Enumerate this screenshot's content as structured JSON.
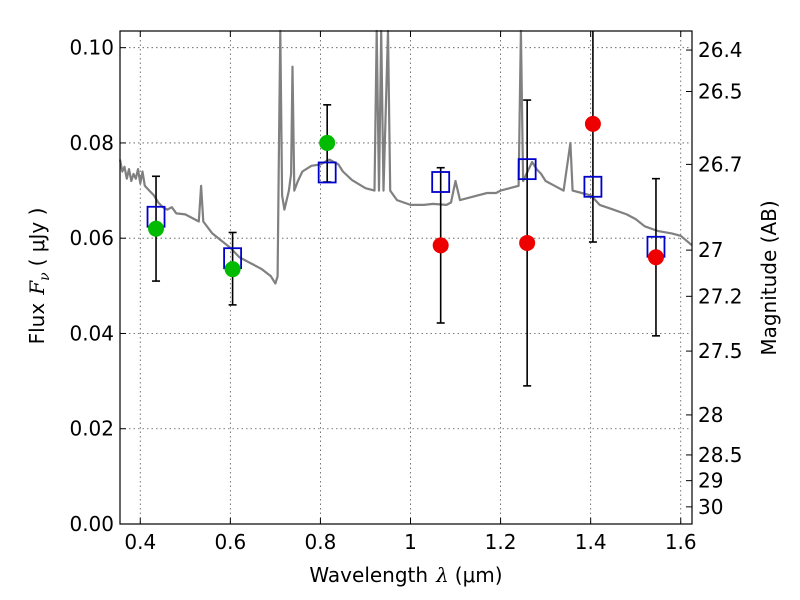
{
  "chart_data": {
    "type": "scatter",
    "xlabel_text": "Wavelength",
    "xlabel_symbol": "λ",
    "xlabel_unit": "(μm)",
    "ylabel_text": "Flux",
    "ylabel_symbol": "F",
    "ylabel_subscript": "ν",
    "ylabel_unit": "( μJy )",
    "y2label": "Magnitude (AB)",
    "xlim": [
      0.355,
      1.625
    ],
    "ylim": [
      0.0,
      0.1035
    ],
    "grid": true,
    "xticks": [
      0.4,
      0.6,
      0.8,
      1.0,
      1.2,
      1.4,
      1.6
    ],
    "xtick_labels": [
      "0.4",
      "0.6",
      "0.8",
      "1",
      "1.2",
      "1.4",
      "1.6"
    ],
    "yticks": [
      0.0,
      0.02,
      0.04,
      0.06,
      0.08,
      0.1
    ],
    "ytick_labels": [
      "0.00",
      "0.02",
      "0.04",
      "0.06",
      "0.08",
      "0.10"
    ],
    "y2ticks": [
      {
        "label": "26.4",
        "flux": 0.0995
      },
      {
        "label": "26.5",
        "flux": 0.0908
      },
      {
        "label": "26.7",
        "flux": 0.0755
      },
      {
        "label": "27",
        "flux": 0.0575
      },
      {
        "label": "27.2",
        "flux": 0.0478
      },
      {
        "label": "27.5",
        "flux": 0.0363
      },
      {
        "label": "28",
        "flux": 0.0229
      },
      {
        "label": "28.5",
        "flux": 0.0145
      },
      {
        "label": "29",
        "flux": 0.0091
      },
      {
        "label": "30",
        "flux": 0.0036
      }
    ],
    "colors": {
      "template": "#808080",
      "model_box": "#0000cc",
      "green_point": "#00bb00",
      "red_point": "#ee0000",
      "errorbar": "#000000",
      "grid": "#555555"
    },
    "template_spectrum": [
      [
        0.355,
        0.0765
      ],
      [
        0.36,
        0.074
      ],
      [
        0.365,
        0.075
      ],
      [
        0.37,
        0.0725
      ],
      [
        0.375,
        0.0745
      ],
      [
        0.38,
        0.072
      ],
      [
        0.385,
        0.0735
      ],
      [
        0.39,
        0.0725
      ],
      [
        0.395,
        0.0745
      ],
      [
        0.4,
        0.0715
      ],
      [
        0.405,
        0.074
      ],
      [
        0.41,
        0.071
      ],
      [
        0.42,
        0.07
      ],
      [
        0.43,
        0.069
      ],
      [
        0.44,
        0.0675
      ],
      [
        0.45,
        0.0665
      ],
      [
        0.46,
        0.066
      ],
      [
        0.47,
        0.0665
      ],
      [
        0.48,
        0.0652
      ],
      [
        0.5,
        0.065
      ],
      [
        0.52,
        0.064
      ],
      [
        0.53,
        0.0635
      ],
      [
        0.535,
        0.071
      ],
      [
        0.54,
        0.0635
      ],
      [
        0.56,
        0.061
      ],
      [
        0.58,
        0.0595
      ],
      [
        0.6,
        0.058
      ],
      [
        0.62,
        0.056
      ],
      [
        0.65,
        0.0545
      ],
      [
        0.67,
        0.0535
      ],
      [
        0.69,
        0.052
      ],
      [
        0.7,
        0.0505
      ],
      [
        0.705,
        0.052
      ],
      [
        0.708,
        0.08
      ],
      [
        0.711,
        0.1035
      ],
      [
        0.715,
        0.069
      ],
      [
        0.72,
        0.066
      ],
      [
        0.73,
        0.07
      ],
      [
        0.735,
        0.0735
      ],
      [
        0.738,
        0.096
      ],
      [
        0.742,
        0.07
      ],
      [
        0.75,
        0.072
      ],
      [
        0.76,
        0.074
      ],
      [
        0.78,
        0.0752
      ],
      [
        0.8,
        0.0755
      ],
      [
        0.82,
        0.0765
      ],
      [
        0.84,
        0.0755
      ],
      [
        0.85,
        0.074
      ],
      [
        0.87,
        0.0722
      ],
      [
        0.9,
        0.0705
      ],
      [
        0.92,
        0.07
      ],
      [
        0.925,
        0.1035
      ],
      [
        0.93,
        0.07
      ],
      [
        0.935,
        0.1035
      ],
      [
        0.94,
        0.07
      ],
      [
        0.95,
        0.1035
      ],
      [
        0.955,
        0.07
      ],
      [
        0.97,
        0.068
      ],
      [
        1.0,
        0.067
      ],
      [
        1.03,
        0.067
      ],
      [
        1.05,
        0.0672
      ],
      [
        1.08,
        0.067
      ],
      [
        1.09,
        0.0675
      ],
      [
        1.1,
        0.072
      ],
      [
        1.11,
        0.068
      ],
      [
        1.13,
        0.0685
      ],
      [
        1.15,
        0.069
      ],
      [
        1.17,
        0.0695
      ],
      [
        1.19,
        0.0695
      ],
      [
        1.2,
        0.07
      ],
      [
        1.22,
        0.0705
      ],
      [
        1.24,
        0.071
      ],
      [
        1.245,
        0.1035
      ],
      [
        1.25,
        0.072
      ],
      [
        1.27,
        0.076
      ],
      [
        1.28,
        0.0745
      ],
      [
        1.29,
        0.0735
      ],
      [
        1.3,
        0.072
      ],
      [
        1.32,
        0.071
      ],
      [
        1.34,
        0.07
      ],
      [
        1.355,
        0.08
      ],
      [
        1.36,
        0.07
      ],
      [
        1.38,
        0.0695
      ],
      [
        1.4,
        0.069
      ],
      [
        1.42,
        0.067
      ],
      [
        1.45,
        0.066
      ],
      [
        1.48,
        0.065
      ],
      [
        1.5,
        0.064
      ],
      [
        1.52,
        0.0625
      ],
      [
        1.55,
        0.0615
      ],
      [
        1.58,
        0.061
      ],
      [
        1.6,
        0.0605
      ],
      [
        1.625,
        0.0585
      ]
    ],
    "model_boxes": [
      {
        "x": 0.435,
        "y": 0.0645
      },
      {
        "x": 0.605,
        "y": 0.0558
      },
      {
        "x": 0.815,
        "y": 0.0738
      },
      {
        "x": 1.067,
        "y": 0.0718
      },
      {
        "x": 1.259,
        "y": 0.0745
      },
      {
        "x": 1.405,
        "y": 0.0708
      },
      {
        "x": 1.545,
        "y": 0.0582
      }
    ],
    "points": [
      {
        "x": 0.435,
        "y": 0.062,
        "err_lo": 0.051,
        "err_hi": 0.073,
        "color": "green"
      },
      {
        "x": 0.605,
        "y": 0.0535,
        "err_lo": 0.046,
        "err_hi": 0.0612,
        "color": "green"
      },
      {
        "x": 0.815,
        "y": 0.08,
        "err_lo": 0.0718,
        "err_hi": 0.088,
        "color": "green"
      },
      {
        "x": 1.067,
        "y": 0.0585,
        "err_lo": 0.0422,
        "err_hi": 0.0748,
        "color": "red"
      },
      {
        "x": 1.259,
        "y": 0.059,
        "err_lo": 0.029,
        "err_hi": 0.089,
        "color": "red"
      },
      {
        "x": 1.405,
        "y": 0.084,
        "err_lo": 0.0592,
        "err_hi": 0.1035,
        "color": "red"
      },
      {
        "x": 1.545,
        "y": 0.056,
        "err_lo": 0.0395,
        "err_hi": 0.0725,
        "color": "red"
      }
    ]
  }
}
